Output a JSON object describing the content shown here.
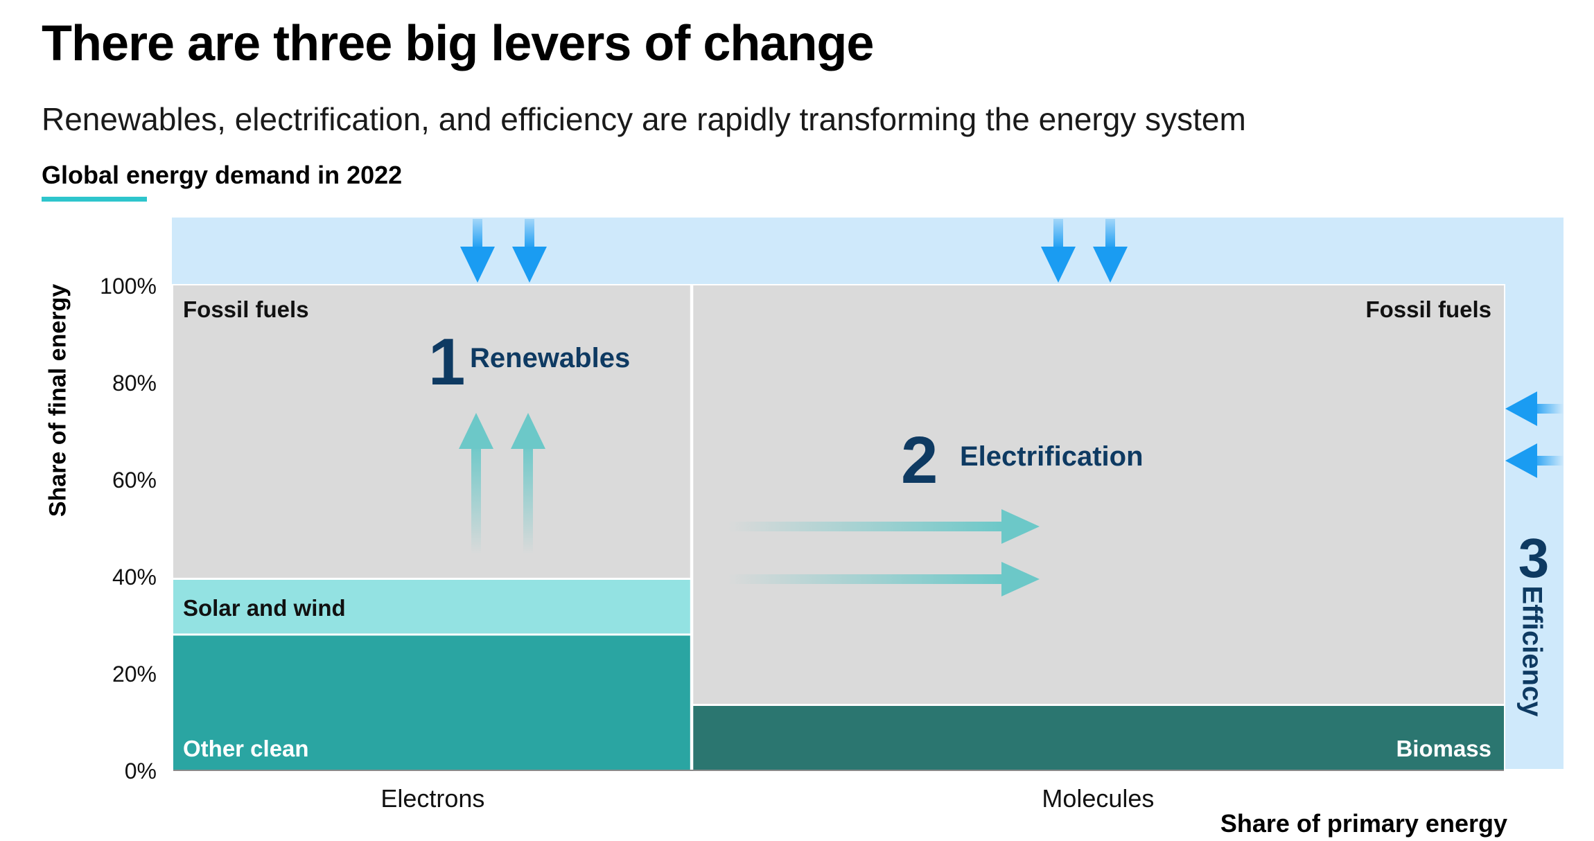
{
  "title": "There are three big levers of change",
  "subtitle": "Renewables, electrification, and efficiency are rapidly transforming the energy system",
  "section_label": "Global energy demand in 2022",
  "colors": {
    "accent_underline": "#2ec5cc",
    "efficiency_band": "#cfe9fb",
    "fossil_fuels": "#dadada",
    "solar_and_wind": "#93e2e2",
    "other_clean": "#2aa5a2",
    "biomass": "#2b7670",
    "lever_text": "#0e3a62",
    "blue_arrows": "#1a9cf2",
    "teal_arrows": "#6cc8c8"
  },
  "levers": [
    {
      "number": "1",
      "label": "Renewables"
    },
    {
      "number": "2",
      "label": "Electrification"
    },
    {
      "number": "3",
      "label": "Efficiency"
    }
  ],
  "chart_data": {
    "type": "marimekko",
    "title": "Global energy demand in 2022",
    "xlabel": "Share of primary energy",
    "ylabel": "Share of final energy",
    "ylim": [
      0,
      100
    ],
    "y_ticks": [
      "0%",
      "20%",
      "40%",
      "60%",
      "80%",
      "100%"
    ],
    "columns": [
      {
        "name": "Electrons",
        "width_share": 0.39,
        "segments": [
          {
            "label": "Other clean",
            "value": 28,
            "color": "#2aa5a2"
          },
          {
            "label": "Solar and wind",
            "value": 11.5,
            "color": "#93e2e2"
          },
          {
            "label": "Fossil fuels",
            "value": 60.5,
            "color": "#dadada"
          }
        ]
      },
      {
        "name": "Molecules",
        "width_share": 0.61,
        "segments": [
          {
            "label": "Biomass",
            "value": 13.5,
            "color": "#2b7670"
          },
          {
            "label": "Fossil fuels",
            "value": 86.5,
            "color": "#dadada"
          }
        ]
      }
    ]
  }
}
